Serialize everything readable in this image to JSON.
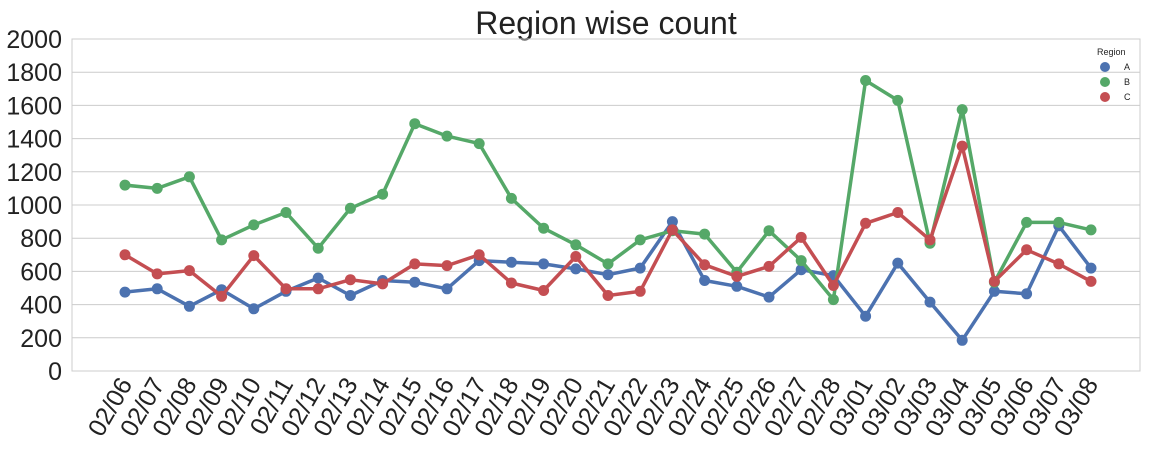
{
  "chart_data": {
    "type": "line",
    "title": "Region wise count",
    "xlabel": "",
    "ylabel": "",
    "ylim": [
      0,
      2000
    ],
    "yticks": [
      0,
      200,
      400,
      600,
      800,
      1000,
      1200,
      1400,
      1600,
      1800,
      2000
    ],
    "grid": true,
    "legend": {
      "title": "Region",
      "position": "top-right"
    },
    "categories": [
      "02/06",
      "02/07",
      "02/08",
      "02/09",
      "02/10",
      "02/11",
      "02/12",
      "02/13",
      "02/14",
      "02/15",
      "02/16",
      "02/17",
      "02/18",
      "02/19",
      "02/20",
      "02/21",
      "02/22",
      "02/23",
      "02/24",
      "02/25",
      "02/26",
      "02/27",
      "02/28",
      "03/01",
      "03/02",
      "03/03",
      "03/04",
      "03/05",
      "03/06",
      "03/07",
      "03/08"
    ],
    "series": [
      {
        "name": "A",
        "color": "#4c72b0",
        "values": [
          475,
          495,
          390,
          490,
          375,
          480,
          560,
          455,
          545,
          535,
          495,
          665,
          655,
          645,
          615,
          580,
          620,
          900,
          545,
          510,
          445,
          610,
          575,
          330,
          650,
          415,
          185,
          480,
          465,
          875,
          620
        ]
      },
      {
        "name": "B",
        "color": "#55a868",
        "values": [
          1120,
          1100,
          1170,
          790,
          880,
          955,
          740,
          980,
          1065,
          1490,
          1415,
          1370,
          1040,
          860,
          760,
          645,
          790,
          845,
          825,
          595,
          845,
          665,
          430,
          1750,
          1630,
          770,
          1575,
          535,
          895,
          895,
          850
        ]
      },
      {
        "name": "C",
        "color": "#c44e52",
        "values": [
          700,
          585,
          605,
          450,
          695,
          495,
          495,
          550,
          525,
          645,
          635,
          700,
          530,
          485,
          690,
          455,
          480,
          850,
          640,
          570,
          630,
          805,
          515,
          890,
          955,
          790,
          1355,
          540,
          730,
          645,
          540
        ]
      }
    ]
  }
}
